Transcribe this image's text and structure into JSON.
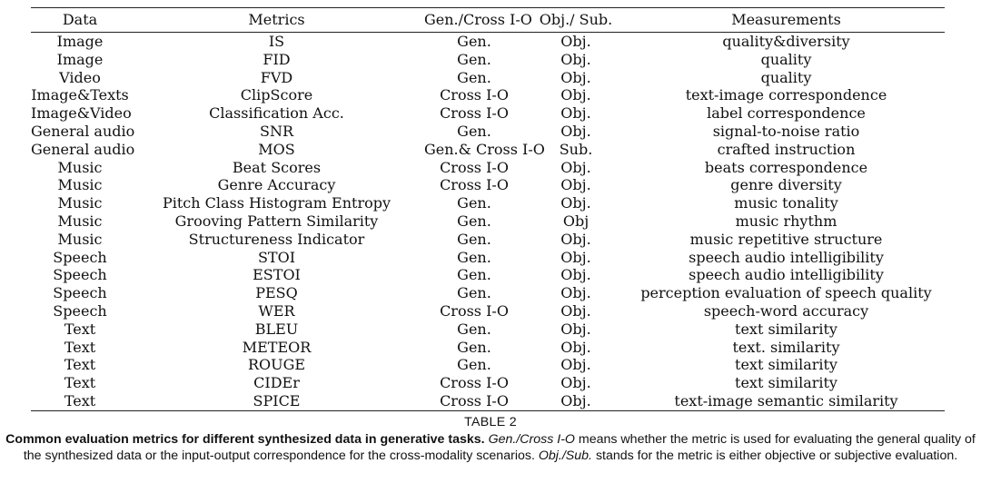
{
  "table": {
    "headers": [
      "Data",
      "Metrics",
      "Gen./Cross I-O",
      "Obj./ Sub.",
      "Measurements"
    ],
    "rows": [
      [
        "Image",
        "IS",
        "Gen.",
        "Obj.",
        "quality&diversity"
      ],
      [
        "Image",
        "FID",
        "Gen.",
        "Obj.",
        "quality"
      ],
      [
        "Video",
        "FVD",
        "Gen.",
        "Obj.",
        "quality"
      ],
      [
        "Image&Texts",
        "ClipScore",
        "Cross I-O",
        "Obj.",
        "text-image correspondence"
      ],
      [
        "Image&Video",
        "Classification Acc.",
        "Cross I-O",
        "Obj.",
        "label correspondence"
      ],
      [
        "General audio",
        "SNR",
        "Gen.",
        "Obj.",
        "signal-to-noise ratio"
      ],
      [
        "General audio",
        "MOS",
        "Gen.& Cross I-O",
        "Sub.",
        "crafted instruction"
      ],
      [
        "Music",
        "Beat Scores",
        "Cross I-O",
        "Obj.",
        "beats correspondence"
      ],
      [
        "Music",
        "Genre Accuracy",
        "Cross I-O",
        "Obj.",
        "genre diversity"
      ],
      [
        "Music",
        "Pitch Class Histogram Entropy",
        "Gen.",
        "Obj.",
        "music tonality"
      ],
      [
        "Music",
        "Grooving Pattern Similarity",
        "Gen.",
        "Obj",
        "music rhythm"
      ],
      [
        "Music",
        "Structureness Indicator",
        "Gen.",
        "Obj.",
        "music repetitive structure"
      ],
      [
        "Speech",
        "STOI",
        "Gen.",
        "Obj.",
        "speech audio intelligibility"
      ],
      [
        "Speech",
        "ESTOI",
        "Gen.",
        "Obj.",
        "speech audio intelligibility"
      ],
      [
        "Speech",
        "PESQ",
        "Gen.",
        "Obj.",
        "perception evaluation of speech quality"
      ],
      [
        "Speech",
        "WER",
        "Cross I-O",
        "Obj.",
        "speech-word accuracy"
      ],
      [
        "Text",
        "BLEU",
        "Gen.",
        "Obj.",
        "text similarity"
      ],
      [
        "Text",
        "METEOR",
        "Gen.",
        "Obj.",
        "text. similarity"
      ],
      [
        "Text",
        "ROUGE",
        "Gen.",
        "Obj.",
        "text similarity"
      ],
      [
        "Text",
        "CIDEr",
        "Cross I-O",
        "Obj.",
        "text similarity"
      ],
      [
        "Text",
        "SPICE",
        "Cross I-O",
        "Obj.",
        "text-image semantic similarity"
      ]
    ]
  },
  "caption": {
    "label": "TABLE 2",
    "bold_text": "Common evaluation metrics for different synthesized data in generative tasks.",
    "term1": "Gen./Cross I-O",
    "text1": " means whether the metric is used for evaluating the general quality of the synthesized data or the input-output correspondence for the cross-modality scenarios. ",
    "term2": "Obj./Sub.",
    "text2": " stands for the metric is either objective or subjective evaluation."
  }
}
